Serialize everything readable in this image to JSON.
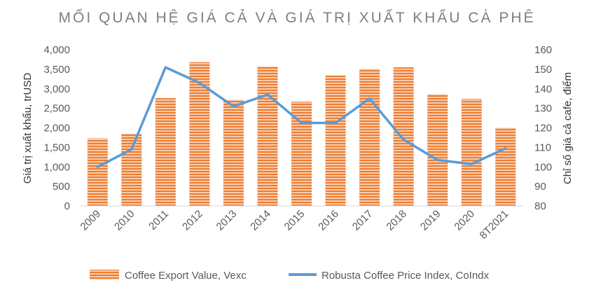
{
  "chart_data": {
    "type": "bar",
    "title": "MỐI QUAN HỆ GIÁ CẢ VÀ GIÁ TRỊ XUẤT KHẨU CÀ PHÊ",
    "categories": [
      "2009",
      "2010",
      "2011",
      "2012",
      "2013",
      "2014",
      "2015",
      "2016",
      "2017",
      "2018",
      "2019",
      "2020",
      "8T2021"
    ],
    "series": [
      {
        "name": "Coffee Export Value, Vexc",
        "type": "bar",
        "axis": "left",
        "color": "#ed7d31",
        "values": [
          1730,
          1850,
          2760,
          3680,
          2720,
          3570,
          2670,
          3340,
          3510,
          3550,
          2860,
          2740,
          2000
        ]
      },
      {
        "name": "Robusta Coffee Price Index, CoIndx",
        "type": "line",
        "axis": "right",
        "color": "#5b9bd5",
        "values": [
          100,
          109,
          151,
          143,
          131,
          137,
          122.5,
          122.5,
          135,
          114,
          103.5,
          101.5,
          109.5
        ]
      }
    ],
    "ylabel": "Giá trị xuất khẩu, trUSD",
    "ylabel_right": "Chỉ số giá cả cafe, điểm",
    "ylim": [
      0,
      4000
    ],
    "ylim_right": [
      80,
      160
    ],
    "yticks": [
      "0",
      "500",
      "1,000",
      "1,500",
      "2,000",
      "2,500",
      "3,000",
      "3,500",
      "4,000"
    ],
    "yticks_right": [
      "80",
      "90",
      "100",
      "110",
      "120",
      "130",
      "140",
      "150",
      "160"
    ],
    "grid": false,
    "legend_position": "bottom"
  }
}
